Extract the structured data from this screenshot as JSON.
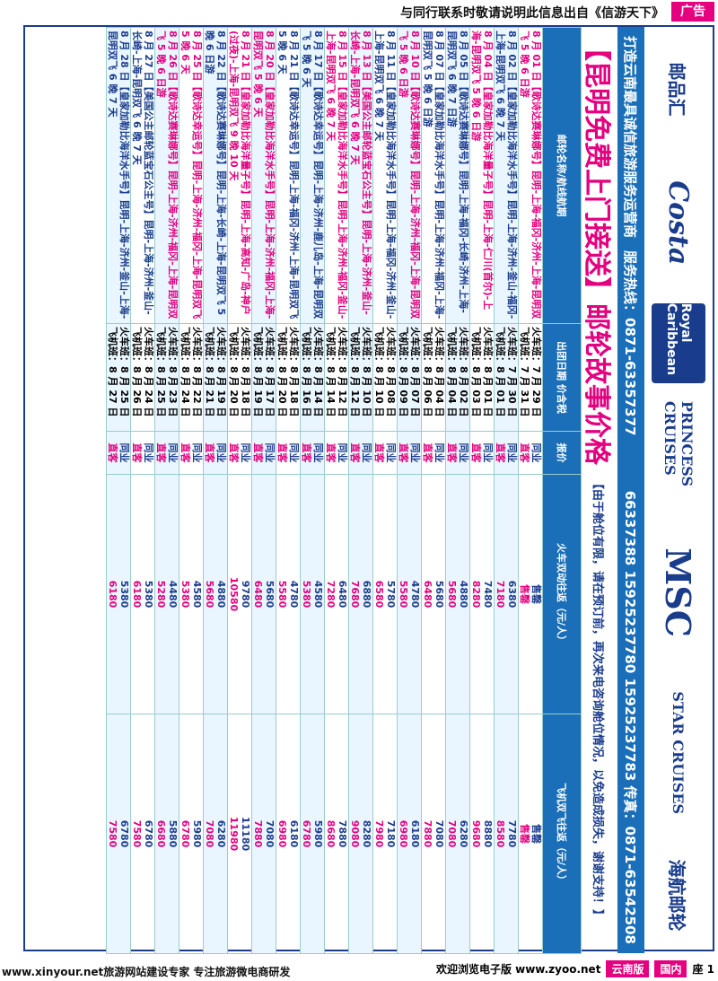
{
  "header": {
    "notice": "与同行联系时敬请说明此信息出自《信游天下》",
    "ad_tag": "广告"
  },
  "logos": [
    "邮品汇",
    "Costa",
    "Royal Caribbean",
    "PRINCESS CRUISES",
    "MSC",
    "STAR CRUISES",
    "海航邮轮"
  ],
  "contact": {
    "company": "打造云南最具诚信旅游服务运营商",
    "hotline_label": "服务热线：0871-63357377",
    "phones": "66337388  15925237780  15925237783  传真：0871-63542508"
  },
  "headline": {
    "title": "【昆明免费上门接送】邮轮故事价格",
    "note": "【由于舱位有限，请在预订前，再次来电咨询舱位情况，以免造成损失，谢谢支持！】"
  },
  "table": {
    "headers": [
      "邮轮名称/航线航期",
      "出团日期\n价含税",
      "报价",
      "火车双动往返（元/人）",
      "飞机双飞往返（元/人）"
    ],
    "rows": [
      {
        "route": "8 月 01 日【歌诗达赛琳娜号】昆明-上海-福冈-济州-上海-昆明双飞 5 晚 6 日游",
        "color": "pink",
        "train": "火车班：7 月 29 日",
        "flight": "飞机班：7 月 31 日",
        "t1": "同业",
        "t2": "直客",
        "p1": "售罄",
        "p2": "售罄",
        "q1": "售罄",
        "q2": "售罄"
      },
      {
        "route": "8 月 02 日【皇家加勒比海洋水手号】昆明-上海-济州-釜山-福冈-上海-昆明双飞 6 晚 7 天",
        "color": "blue",
        "train": "火车班：7 月 30 日",
        "flight": "飞机班：8 月 01 日",
        "t1": "同业",
        "t2": "直客",
        "p1": "6380",
        "p2": "7180",
        "q1": "7780",
        "q2": "8580"
      },
      {
        "route": "8 月 04 日【皇家加勒比海洋量子号】昆明-上海-仁川(首尔)-上海-昆明双飞 5 晚 6 日游",
        "color": "pink",
        "train": "火车班：8 月 01 日",
        "flight": "飞机班：8 月 03 日",
        "t1": "同业",
        "t2": "直客",
        "p1": "7480",
        "p2": "8280",
        "q1": "8880",
        "q2": "9680"
      },
      {
        "route": "8 月 05 日【歌诗达赛琳娜号】昆明-上海-福冈-长崎-济州-上海-昆明双飞 6 晚 7 日游",
        "color": "blue",
        "train": "火车班：8 月 02 日",
        "flight": "飞机班：8 月 04 日",
        "t1": "同业",
        "t2": "直客",
        "p1": "4880",
        "p2": "5680",
        "q1": "6280",
        "q2": "7080"
      },
      {
        "route": "8 月 07 日【皇家加勒比海洋水手号】昆明-上海-济州-福冈-上海-昆明双飞 5 晚 6 日游",
        "color": "blue",
        "train": "火车班：8 月 04 日",
        "flight": "飞机班：8 月 06 日",
        "t1": "同业",
        "t2": "直客",
        "p1": "5680",
        "p2": "6480",
        "q1": "7080",
        "q2": "7880"
      },
      {
        "route": "8 月 10 日【歌诗达赛琳娜号】昆明-上海-济州-福冈-上海-昆明双飞 5 晚 6 日游",
        "color": "pink",
        "train": "火车班：8 月 07 日",
        "flight": "飞机班：8 月 09 日",
        "t1": "同业",
        "t2": "直客",
        "p1": "4780",
        "p2": "5580",
        "q1": "6180",
        "q2": "6980"
      },
      {
        "route": "8 月 11 日【皇家加勒比海洋水手号】昆明-上海-福冈-济州-釜山-上海-昆明双飞 6 晚 7 天",
        "color": "blue",
        "train": "火车班：8 月 08 日",
        "flight": "飞机班：8 月 10 日",
        "t1": "同业",
        "t2": "直客",
        "p1": "5780",
        "p2": "6580",
        "q1": "7180",
        "q2": "7980"
      },
      {
        "route": "8 月 13 日【美国公主邮轮蓝宝石公主号】昆明-上海-济州-釜山-长崎-上海-昆明双飞 6 晚 7 天",
        "color": "pink",
        "train": "火车班：8 月 10 日",
        "flight": "飞机班：8 月 12 日",
        "t1": "同业",
        "t2": "直客",
        "p1": "6880",
        "p2": "7680",
        "q1": "8280",
        "q2": "9080"
      },
      {
        "route": "8 月 15 日【皇家加勒比海洋水手号】昆明-上海-济州-福冈-釜山-上海-昆明双飞 6 晚 7 天",
        "color": "pink",
        "train": "火车班：8 月 12 日",
        "flight": "飞机班：8 月 14 日",
        "t1": "同业",
        "t2": "直客",
        "p1": "6480",
        "p2": "7280",
        "q1": "7880",
        "q2": "8680"
      },
      {
        "route": "8 月 17 日【歌诗达幸运号】昆明-上海-济州-鹿儿岛-上海-昆明双飞 5 晚 6 天",
        "color": "blue",
        "train": "火车班：8 月 14 日",
        "flight": "飞机班：8 月 16 日",
        "t1": "同业",
        "t2": "直客",
        "p1": "4580",
        "p2": "5380",
        "q1": "5980",
        "q2": "6780"
      },
      {
        "route": "8 月 21 日【歌诗达幸运号】昆明-上海-福冈-济州-上海-昆明双飞 5 晚 6 天",
        "color": "blue",
        "train": "火车班：8 月 18 日",
        "flight": "飞机班：8 月 20 日",
        "t1": "同业",
        "t2": "直客",
        "p1": "4780",
        "p2": "5580",
        "q1": "6180",
        "q2": "6980"
      },
      {
        "route": "8 月 20 日【皇家加勒比海洋水手号】昆明-上海-济州-福冈-上海-昆明双飞 5 晚 6 天",
        "color": "pink",
        "train": "火车班：8 月 17 日",
        "flight": "飞机班：8 月 19 日",
        "t1": "同业",
        "t2": "直客",
        "p1": "5680",
        "p2": "6480",
        "q1": "7080",
        "q2": "7880"
      },
      {
        "route": "8 月 21 日【皇家加勒比海洋量子号】昆明-上海-高知-广岛-神户(过夜)-上海-昆明双飞 9 晚 10 天",
        "color": "pink",
        "train": "火车班：8 月 18 日",
        "flight": "飞机班：8 月 20 日",
        "t1": "同业",
        "t2": "直客",
        "p1": "9780",
        "p2": "10580",
        "q1": "11180",
        "q2": "11980"
      },
      {
        "route": "8 月 22 日【歌诗达赛琳娜号】昆明-上海-长崎-上海-昆明双飞 5 晚 6 日游",
        "color": "blue",
        "train": "火车班：8 月 19 日",
        "flight": "飞机班：8 月 21 日",
        "t1": "同业",
        "t2": "直客",
        "p1": "4880",
        "p2": "5680",
        "q1": "6280",
        "q2": "7080"
      },
      {
        "route": "8 月 25 日【歌诗达幸运号】昆明-上海-济州-福冈-上海-昆明双飞 5 晚 6 天",
        "color": "pink",
        "train": "火车班：8 月 22 日",
        "flight": "飞机班：8 月 24 日",
        "t1": "同业",
        "t2": "直客",
        "p1": "4580",
        "p2": "5380",
        "q1": "5980",
        "q2": "6780"
      },
      {
        "route": "8 月 26 日【歌诗达赛琳娜号】昆明-上海-济州-福冈-上海-昆明双飞 5 晚 6 日游",
        "color": "pink",
        "train": "火车班：8 月 23 日",
        "flight": "飞机班：8 月 25 日",
        "t1": "同业",
        "t2": "直客",
        "p1": "4480",
        "p2": "5280",
        "q1": "5880",
        "q2": "6680"
      },
      {
        "route": "8 月 27 日【美国公主邮轮蓝宝石公主号】昆明-上海-济州-釜山-长崎-上海-昆明双飞 6 晚 7 天",
        "color": "blue",
        "train": "火车班：8 月 24 日",
        "flight": "飞机班：8 月 26 日",
        "t1": "同业",
        "t2": "直客",
        "p1": "5380",
        "p2": "6180",
        "q1": "6780",
        "q2": "7580"
      },
      {
        "route": "8 月 28 日【皇家加勒比海洋水手号】昆明-上海-济州-釜山-上海-昆明双飞 6 晚 7 天",
        "color": "blue",
        "train": "火车班：8 月 25 日",
        "flight": "飞机班：8 月 27 日",
        "t1": "同业",
        "t2": "直客",
        "p1": "5380",
        "p2": "6180",
        "q1": "6780",
        "q2": "7580"
      }
    ]
  },
  "footer": {
    "left": "www.xinyour.net旅游网站建设专家 专注旅游微电商研发",
    "center": "欢迎浏览电子版 www.zyoo.net",
    "pill1": "云南版",
    "pill2": "国内",
    "page": "座 1"
  }
}
